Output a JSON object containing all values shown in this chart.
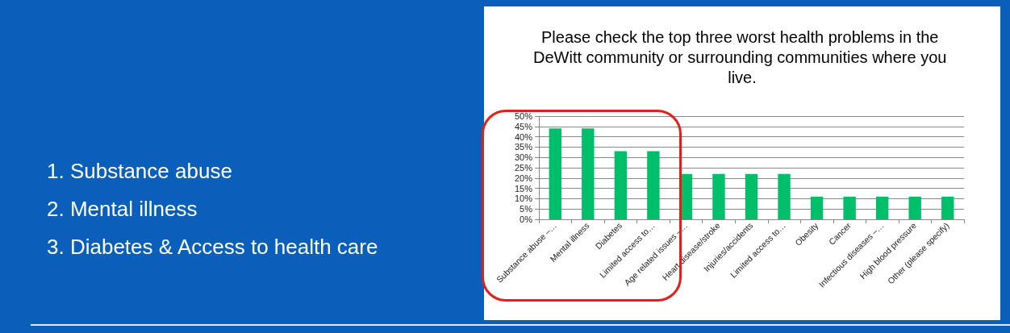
{
  "chart_data": {
    "type": "bar",
    "title": "Please check the top three worst health problems in the DeWitt community or surrounding communities where you live.",
    "categories": [
      "Substance abuse –…",
      "Mental illness",
      "Diabetes",
      "Limited access to…",
      "Age related issues –…",
      "Heart disease/stroke",
      "Injuries/accidents",
      "Limited access to…",
      "Obesity",
      "Cancer",
      "Infectious diseases –…",
      "High blood pressure",
      "Other (please specify)"
    ],
    "values": [
      44,
      44,
      33,
      33,
      22,
      22,
      22,
      22,
      11,
      11,
      11,
      11,
      11
    ],
    "color": "#00bf6a",
    "ylim": [
      0,
      50
    ],
    "yticks": [
      {
        "value": 0,
        "label": "0%"
      },
      {
        "value": 5,
        "label": "5%"
      },
      {
        "value": 10,
        "label": "10%"
      },
      {
        "value": 15,
        "label": "15%"
      },
      {
        "value": 20,
        "label": "20%"
      },
      {
        "value": 25,
        "label": "25%"
      },
      {
        "value": 30,
        "label": "30%"
      },
      {
        "value": 35,
        "label": "35%"
      },
      {
        "value": 40,
        "label": "40%"
      },
      {
        "value": 45,
        "label": "45%"
      },
      {
        "value": 50,
        "label": "50%"
      }
    ],
    "grid": "y",
    "annotations": [
      "1. Substance abuse",
      "2. Mental illness",
      "3. Diabetes & Access to health care"
    ]
  }
}
